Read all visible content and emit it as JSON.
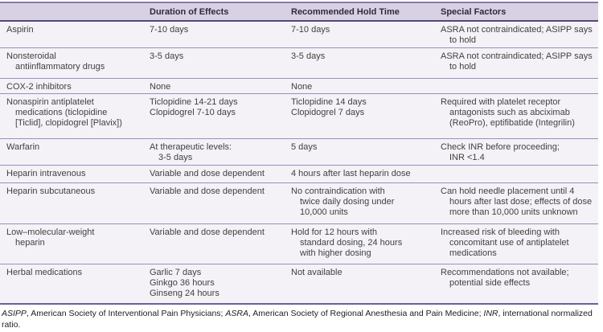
{
  "colors": {
    "header_bg": "#d7d1e3",
    "body_bg": "#f4f2f7",
    "top_border": "#8878b0",
    "header_border": "#564879",
    "row_separator": "#9c8dbd",
    "bottom_border": "#6f5f9b",
    "header_text": "#2f2940",
    "body_text": "#404040"
  },
  "table": {
    "headers": [
      "",
      "Duration of Effects",
      "Recommended Hold Time",
      "Special Factors"
    ],
    "rows": [
      {
        "name": [
          "Aspirin"
        ],
        "duration": [
          "7-10 days"
        ],
        "hold": [
          "7-10 days"
        ],
        "special": [
          "ASRA not contraindicated; ASIPP says",
          "to hold"
        ]
      },
      {
        "name": [
          "Nonsteroidal",
          "antiinflammatory drugs"
        ],
        "duration": [
          "3-5 days"
        ],
        "hold": [
          "3-5 days"
        ],
        "special": [
          "ASRA not contraindicated; ASIPP says",
          "to hold"
        ]
      },
      {
        "name": [
          "COX-2 inhibitors"
        ],
        "duration": [
          "None"
        ],
        "hold": [
          "None"
        ],
        "special": []
      },
      {
        "name": [
          "Nonaspirin antiplatelet",
          "medications (ticlopidine",
          "[Ticlid], clopidogrel [Plavix])"
        ],
        "duration": [
          "Ticlopidine 14-21 days",
          "Clopidogrel 7-10 days"
        ],
        "hold": [
          "Ticlopidine 14 days",
          "Clopidogrel 7 days"
        ],
        "special": [
          "Required with platelet receptor",
          "antagonists such as abciximab",
          "(ReoPro), eptifibatide (Integrilin)"
        ]
      },
      {
        "name": [
          "Warfarin"
        ],
        "duration": [
          "At therapeutic levels:",
          "3-5 days"
        ],
        "hold": [
          "5 days"
        ],
        "special": [
          "Check INR before proceeding;",
          "INR <1.4"
        ]
      },
      {
        "name": [
          "Heparin intravenous"
        ],
        "duration": [
          "Variable and dose dependent"
        ],
        "hold": [
          "4 hours after last heparin dose"
        ],
        "special": []
      },
      {
        "name": [
          "Heparin subcutaneous"
        ],
        "duration": [
          "Variable and dose dependent"
        ],
        "hold": [
          "No contraindication with",
          "twice daily dosing under",
          "10,000 units"
        ],
        "special": [
          "Can hold needle placement until 4",
          "hours after last dose; effects of dose",
          "more than 10,000 units unknown"
        ]
      },
      {
        "name": [
          "Low–molecular-weight",
          "heparin"
        ],
        "duration": [
          "Variable and dose dependent"
        ],
        "hold": [
          "Hold for 12 hours with",
          "standard dosing, 24 hours",
          "with higher dosing"
        ],
        "special": [
          "Increased risk of bleeding with",
          "concomitant use of antiplatelet",
          "medications"
        ]
      },
      {
        "name": [
          "Herbal medications"
        ],
        "duration": [
          "Garlic 7 days",
          "Ginkgo 36 hours",
          "Ginseng 24 hours"
        ],
        "hold": [
          "Not available"
        ],
        "special": [
          "Recommendations not available;",
          "potential side effects"
        ]
      }
    ]
  },
  "footnote": {
    "abbr1": "ASIPP",
    "seg1": ", American Society of Interventional Pain Physicians; ",
    "abbr2": "ASRA",
    "seg2": ", American Society of Regional Anesthesia and Pain Medicine; ",
    "abbr3": "INR",
    "seg3": ", international normalized ratio."
  }
}
